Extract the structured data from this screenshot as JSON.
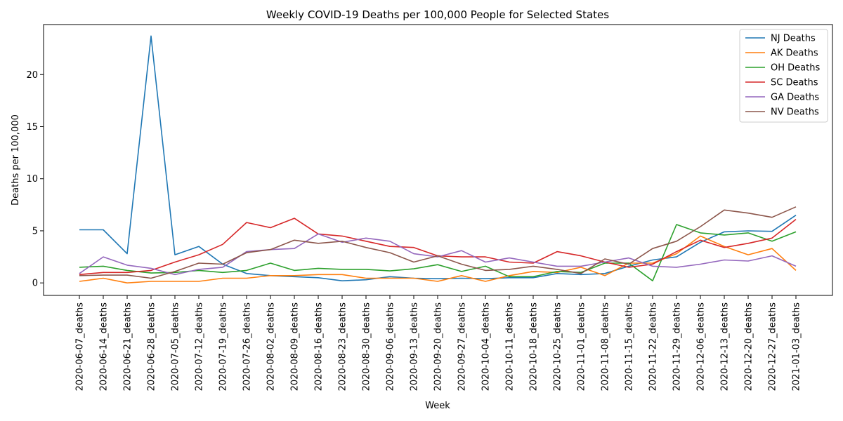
{
  "chart_data": {
    "type": "line",
    "title": "Weekly COVID-19 Deaths per 100,000 People for Selected States",
    "xlabel": "Week",
    "ylabel": "Deaths per 100,000",
    "ylim": [
      -1.2,
      24.8
    ],
    "yticks": [
      0,
      5,
      10,
      15,
      20
    ],
    "grid": false,
    "legend_position": "top-right",
    "categories": [
      "2020-06-07_deaths",
      "2020-06-14_deaths",
      "2020-06-21_deaths",
      "2020-06-28_deaths",
      "2020-07-05_deaths",
      "2020-07-12_deaths",
      "2020-07-19_deaths",
      "2020-07-26_deaths",
      "2020-08-02_deaths",
      "2020-08-09_deaths",
      "2020-08-16_deaths",
      "2020-08-23_deaths",
      "2020-08-30_deaths",
      "2020-09-06_deaths",
      "2020-09-13_deaths",
      "2020-09-20_deaths",
      "2020-09-27_deaths",
      "2020-10-04_deaths",
      "2020-10-11_deaths",
      "2020-10-18_deaths",
      "2020-10-25_deaths",
      "2020-11-01_deaths",
      "2020-11-08_deaths",
      "2020-11-15_deaths",
      "2020-11-22_deaths",
      "2020-11-29_deaths",
      "2020-12-06_deaths",
      "2020-12-13_deaths",
      "2020-12-20_deaths",
      "2020-12-27_deaths",
      "2021-01-03_deaths"
    ],
    "series": [
      {
        "name": "NJ Deaths",
        "color": "#1f77b4",
        "values": [
          5.1,
          5.1,
          2.8,
          23.7,
          2.7,
          3.5,
          1.8,
          0.9,
          0.7,
          0.6,
          0.5,
          0.2,
          0.3,
          0.6,
          0.45,
          0.4,
          0.45,
          0.4,
          0.5,
          0.5,
          0.9,
          0.8,
          0.9,
          1.6,
          2.2,
          2.5,
          3.9,
          4.9,
          5.0,
          4.95,
          6.5
        ]
      },
      {
        "name": "AK Deaths",
        "color": "#ff7f0e",
        "values": [
          0.15,
          0.45,
          0.0,
          0.15,
          0.15,
          0.15,
          0.45,
          0.45,
          0.7,
          0.7,
          0.8,
          0.8,
          0.45,
          0.45,
          0.45,
          0.15,
          0.7,
          0.15,
          0.7,
          1.1,
          1.0,
          1.5,
          0.7,
          1.9,
          1.9,
          2.8,
          4.5,
          3.5,
          2.7,
          3.3,
          1.2
        ]
      },
      {
        "name": "OH Deaths",
        "color": "#2ca02c",
        "values": [
          1.5,
          1.6,
          1.2,
          0.95,
          1.0,
          1.2,
          1.0,
          1.2,
          1.9,
          1.2,
          1.4,
          1.3,
          1.3,
          1.15,
          1.35,
          1.75,
          1.1,
          1.6,
          0.6,
          0.6,
          1.1,
          1.0,
          1.9,
          1.9,
          0.2,
          5.6,
          4.8,
          4.6,
          4.8,
          4.0,
          4.9
        ]
      },
      {
        "name": "SC Deaths",
        "color": "#d62728",
        "values": [
          0.8,
          1.0,
          1.0,
          1.2,
          2.0,
          2.7,
          3.7,
          5.8,
          5.3,
          6.2,
          4.7,
          4.5,
          4.0,
          3.5,
          3.4,
          2.6,
          2.5,
          2.5,
          2.0,
          1.9,
          3.0,
          2.6,
          2.0,
          1.5,
          1.8,
          3.0,
          4.1,
          3.4,
          3.8,
          4.3,
          6.1
        ]
      },
      {
        "name": "GA Deaths",
        "color": "#9467bd",
        "values": [
          0.9,
          2.5,
          1.7,
          1.4,
          0.8,
          1.3,
          1.5,
          3.0,
          3.2,
          3.3,
          4.7,
          3.9,
          4.3,
          4.0,
          2.8,
          2.5,
          3.1,
          2.0,
          2.4,
          2.0,
          1.6,
          1.6,
          2.0,
          2.4,
          1.6,
          1.5,
          1.8,
          2.2,
          2.1,
          2.6,
          1.6
        ]
      },
      {
        "name": "NV Deaths",
        "color": "#8c564b",
        "values": [
          0.7,
          0.75,
          0.75,
          0.45,
          1.1,
          1.9,
          1.8,
          2.9,
          3.2,
          4.1,
          3.8,
          4.0,
          3.4,
          2.9,
          2.0,
          2.6,
          1.8,
          1.2,
          1.3,
          1.6,
          1.3,
          0.9,
          2.3,
          1.8,
          3.3,
          4.0,
          5.4,
          7.0,
          6.7,
          6.3,
          7.3
        ]
      }
    ]
  }
}
